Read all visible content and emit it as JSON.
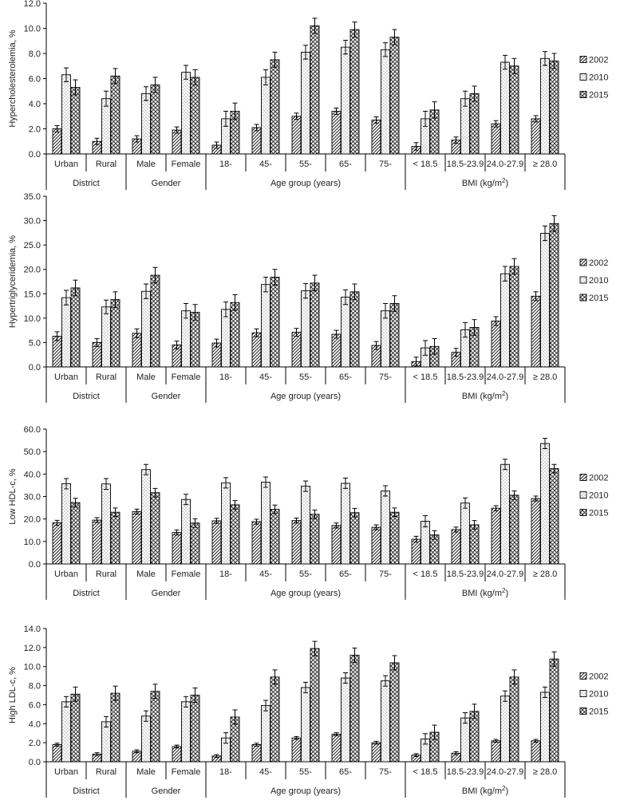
{
  "categories": [
    "Urban",
    "Rural",
    "Male",
    "Female",
    "18-",
    "45-",
    "55-",
    "65-",
    "75-",
    "< 18.5",
    "18.5-23.9",
    "24.0-27.9",
    "≥ 28.0"
  ],
  "groups": [
    {
      "label": "District",
      "count": 2
    },
    {
      "label": "Gender",
      "count": 2
    },
    {
      "label": "Age group (years)",
      "count": 5
    },
    {
      "label": "BMI (kg/m²)",
      "count": 4
    }
  ],
  "legend": [
    "2002",
    "2010",
    "2015"
  ],
  "chart_data": [
    {
      "type": "bar",
      "ylabel": "Hypercholesterolemia, %",
      "ylim": [
        0,
        12
      ],
      "yticks": [
        "0.0",
        "2.0",
        "4.0",
        "6.0",
        "8.0",
        "10.0",
        "12.0"
      ],
      "series": [
        {
          "name": "2002",
          "values": [
            2.0,
            1.0,
            1.2,
            1.9,
            0.7,
            2.1,
            3.0,
            3.4,
            2.7,
            0.6,
            1.1,
            2.4,
            2.8
          ],
          "errors": [
            0.25,
            0.25,
            0.25,
            0.25,
            0.25,
            0.25,
            0.25,
            0.25,
            0.25,
            0.3,
            0.25,
            0.25,
            0.25
          ]
        },
        {
          "name": "2010",
          "values": [
            6.3,
            4.4,
            4.8,
            6.5,
            2.8,
            6.1,
            8.1,
            8.5,
            8.3,
            2.8,
            4.4,
            7.3,
            7.6
          ],
          "errors": [
            0.55,
            0.6,
            0.55,
            0.55,
            0.6,
            0.6,
            0.55,
            0.55,
            0.55,
            0.6,
            0.6,
            0.55,
            0.55
          ]
        },
        {
          "name": "2015",
          "values": [
            5.3,
            6.2,
            5.5,
            6.1,
            3.4,
            7.5,
            10.2,
            9.9,
            9.3,
            3.5,
            4.8,
            7.0,
            7.4
          ],
          "errors": [
            0.6,
            0.6,
            0.6,
            0.6,
            0.65,
            0.6,
            0.6,
            0.6,
            0.6,
            0.65,
            0.6,
            0.6,
            0.6
          ]
        }
      ]
    },
    {
      "type": "bar",
      "ylabel": "Hypertriglyceridemia, %",
      "ylim": [
        0,
        35
      ],
      "yticks": [
        "0.0",
        "5.0",
        "10.0",
        "15.0",
        "20.0",
        "25.0",
        "30.0",
        "35.0"
      ],
      "series": [
        {
          "name": "2002",
          "values": [
            6.3,
            5.0,
            6.9,
            4.5,
            4.9,
            7.0,
            7.1,
            6.7,
            4.4,
            1.1,
            3.0,
            9.4,
            14.5
          ],
          "errors": [
            0.9,
            0.8,
            0.9,
            0.8,
            0.8,
            0.8,
            0.8,
            0.8,
            0.8,
            0.9,
            0.8,
            0.9,
            0.9
          ]
        },
        {
          "name": "2010",
          "values": [
            14.2,
            12.3,
            15.5,
            11.5,
            11.8,
            16.9,
            15.6,
            14.3,
            11.5,
            3.9,
            7.6,
            19.1,
            27.4
          ],
          "errors": [
            1.5,
            1.4,
            1.5,
            1.5,
            1.5,
            1.5,
            1.5,
            1.5,
            1.5,
            1.5,
            1.5,
            1.5,
            1.5
          ]
        },
        {
          "name": "2015",
          "values": [
            16.2,
            13.8,
            18.8,
            11.2,
            13.2,
            18.4,
            17.2,
            15.4,
            13.0,
            4.2,
            8.1,
            20.6,
            29.4
          ],
          "errors": [
            1.6,
            1.6,
            1.6,
            1.6,
            1.6,
            1.6,
            1.6,
            1.6,
            1.6,
            1.6,
            1.6,
            1.6,
            1.6
          ]
        }
      ]
    },
    {
      "type": "bar",
      "ylabel": "Low HDL-c, %",
      "ylim": [
        0,
        60
      ],
      "yticks": [
        "0.0",
        "10.0",
        "20.0",
        "30.0",
        "40.0",
        "50.0",
        "60.0"
      ],
      "series": [
        {
          "name": "2002",
          "values": [
            18.3,
            19.5,
            23.3,
            14.0,
            19.2,
            18.8,
            19.3,
            17.1,
            16.3,
            11.0,
            15.3,
            24.8,
            29.1
          ],
          "errors": [
            1.1,
            1.1,
            1.1,
            1.1,
            1.1,
            1.1,
            1.1,
            1.1,
            1.1,
            1.3,
            1.1,
            1.1,
            1.1
          ]
        },
        {
          "name": "2010",
          "values": [
            35.7,
            35.6,
            42.0,
            28.7,
            36.1,
            36.4,
            34.6,
            35.9,
            32.5,
            19.0,
            27.1,
            44.3,
            53.6
          ],
          "errors": [
            2.3,
            2.4,
            2.3,
            2.3,
            2.3,
            2.3,
            2.3,
            2.3,
            2.3,
            2.5,
            2.3,
            2.3,
            2.3
          ]
        },
        {
          "name": "2015",
          "values": [
            27.3,
            23.0,
            31.7,
            18.2,
            26.3,
            24.3,
            22.1,
            22.8,
            23.0,
            12.9,
            17.4,
            30.6,
            42.4
          ],
          "errors": [
            1.9,
            1.9,
            1.9,
            1.9,
            1.9,
            1.9,
            1.9,
            1.9,
            1.9,
            1.9,
            1.9,
            1.9,
            1.9
          ]
        }
      ]
    },
    {
      "type": "bar",
      "ylabel": "High LDL-c, %",
      "ylim": [
        0,
        14
      ],
      "yticks": [
        "0.0",
        "2.0",
        "4.0",
        "6.0",
        "8.0",
        "10.0",
        "12.0",
        "14.0"
      ],
      "series": [
        {
          "name": "2002",
          "values": [
            1.8,
            0.8,
            1.1,
            1.6,
            0.6,
            1.8,
            2.5,
            2.9,
            2.0,
            0.7,
            0.9,
            2.2,
            2.2
          ],
          "errors": [
            0.15,
            0.15,
            0.15,
            0.15,
            0.15,
            0.15,
            0.15,
            0.15,
            0.15,
            0.15,
            0.15,
            0.15,
            0.15
          ]
        },
        {
          "name": "2010",
          "values": [
            6.3,
            4.2,
            4.8,
            6.3,
            2.5,
            5.9,
            7.8,
            8.8,
            8.5,
            2.4,
            4.6,
            6.9,
            7.3
          ],
          "errors": [
            0.55,
            0.55,
            0.55,
            0.55,
            0.55,
            0.55,
            0.55,
            0.55,
            0.55,
            0.55,
            0.55,
            0.55,
            0.55
          ]
        },
        {
          "name": "2015",
          "values": [
            7.1,
            7.2,
            7.4,
            7.0,
            4.7,
            8.9,
            11.9,
            11.2,
            10.4,
            3.1,
            5.3,
            8.9,
            10.8
          ],
          "errors": [
            0.75,
            0.75,
            0.75,
            0.75,
            0.75,
            0.75,
            0.75,
            0.75,
            0.75,
            0.75,
            0.75,
            0.75,
            0.75
          ]
        }
      ]
    }
  ]
}
